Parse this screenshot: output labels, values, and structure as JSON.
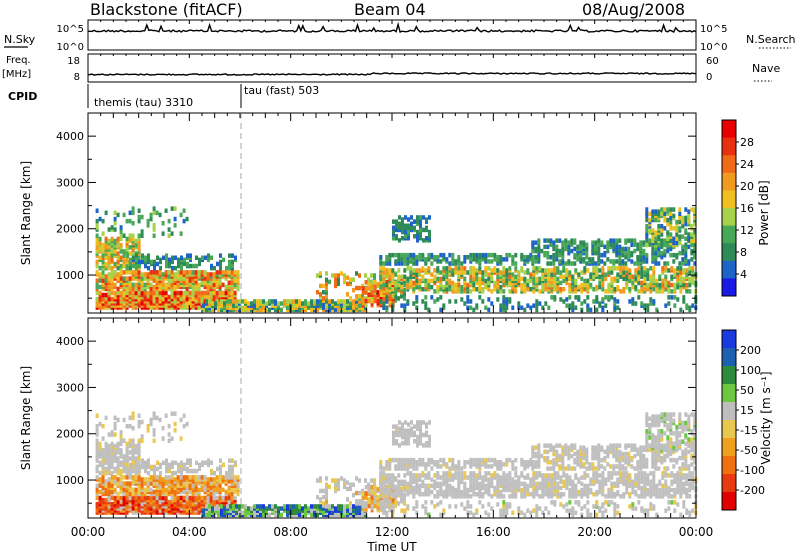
{
  "header": {
    "station": "Blackstone (fitACF)",
    "beam": "Beam 04",
    "date": "08/Aug/2008"
  },
  "strip_panels": {
    "nsky": {
      "label": "N.Sky",
      "ticks": [
        "10^5",
        "10^0"
      ],
      "right_ticks": [
        "10^5",
        "10^0"
      ],
      "right_label": "N.Search"
    },
    "freq": {
      "label_line1": "Freq.",
      "label_line2": "[MHz]",
      "ticks": [
        "18",
        "8"
      ],
      "right_ticks": [
        "60",
        "0"
      ],
      "right_label": "Nave"
    },
    "cpid": {
      "label": "CPID",
      "modes": [
        {
          "name": "themis (tau) 3310",
          "start_hour": 0,
          "end_hour": 6
        },
        {
          "name": "tau (fast) 503",
          "start_hour": 6,
          "end_hour": 24
        }
      ]
    }
  },
  "colors": {
    "power": [
      "#1a1ae6",
      "#1e64c8",
      "#2e8b57",
      "#48a858",
      "#a6d24a",
      "#f0c020",
      "#f09a20",
      "#f06a18",
      "#e83010",
      "#e80000"
    ],
    "velocity": [
      "#1a3ae0",
      "#1e60b0",
      "#2e8a3c",
      "#6cc840",
      "#bebebe",
      "#e8c850",
      "#f0a020",
      "#f07010",
      "#e83a10",
      "#e00000"
    ],
    "ground": "#c0c0c0"
  },
  "chart_data": [
    {
      "type": "heatmap",
      "ylabel": "Slant Range [km]",
      "xlabel": "",
      "colorbar_label": "Power [dB]",
      "colorbar_ticks": [
        "28",
        "24",
        "20",
        "16",
        "12",
        "8",
        "4"
      ],
      "x_tick_labels": [
        "00:00",
        "04:00",
        "08:00",
        "12:00",
        "16:00",
        "20:00",
        "00:00"
      ],
      "y_tick_labels": [
        "1000",
        "2000",
        "3000",
        "4000"
      ],
      "xlim_hours": [
        0,
        24
      ],
      "ylim_km": [
        180,
        4500
      ],
      "zlim": [
        0,
        30
      ]
    },
    {
      "type": "heatmap",
      "ylabel": "Slant Range [km]",
      "xlabel": "Time UT",
      "colorbar_label": "Velocity [m s⁻¹]",
      "colorbar_ticks": [
        "200",
        "100",
        "50",
        "15",
        "-15",
        "-50",
        "-100",
        "-200"
      ],
      "x_tick_labels": [
        "00:00",
        "04:00",
        "08:00",
        "12:00",
        "16:00",
        "20:00",
        "00:00"
      ],
      "y_tick_labels": [
        "1000",
        "2000",
        "3000",
        "4000"
      ],
      "xlim_hours": [
        0,
        24
      ],
      "ylim_km": [
        180,
        4500
      ],
      "zlim": [
        -250,
        250
      ]
    }
  ],
  "scatter_regions": [
    {
      "h0": 0.3,
      "h1": 5.8,
      "r0": 250,
      "r1": 600,
      "p": 0.9,
      "pw": [
        12,
        30
      ],
      "v": [
        -220,
        -80
      ],
      "g": 0.15
    },
    {
      "h0": 0.3,
      "h1": 5.9,
      "r0": 650,
      "r1": 1050,
      "p": 0.8,
      "pw": [
        10,
        26
      ],
      "v": [
        -150,
        -20
      ],
      "g": 0.2
    },
    {
      "h0": 0.3,
      "h1": 2.0,
      "r0": 1100,
      "r1": 1750,
      "p": 0.65,
      "pw": [
        8,
        22
      ],
      "v": [
        -30,
        30
      ],
      "g": 0.7
    },
    {
      "h0": 1.5,
      "h1": 5.8,
      "r0": 1100,
      "r1": 1400,
      "p": 0.35,
      "pw": [
        4,
        12
      ],
      "v": [
        -20,
        20
      ],
      "g": 0.8
    },
    {
      "h0": 0.3,
      "h1": 4.0,
      "r0": 1800,
      "r1": 2400,
      "p": 0.12,
      "pw": [
        4,
        14
      ],
      "v": [
        -40,
        40
      ],
      "g": 0.5
    },
    {
      "h0": 4.5,
      "h1": 11.0,
      "r0": 200,
      "r1": 400,
      "p": 0.85,
      "pw": [
        4,
        20
      ],
      "v": [
        20,
        220
      ],
      "g": 0.1
    },
    {
      "h0": 9.0,
      "h1": 12.5,
      "r0": 400,
      "r1": 1000,
      "p": 0.25,
      "pw": [
        6,
        24
      ],
      "v": [
        -60,
        40
      ],
      "g": 0.5
    },
    {
      "h0": 10.8,
      "h1": 12.0,
      "r0": 300,
      "r1": 800,
      "p": 0.6,
      "pw": [
        14,
        28
      ],
      "v": [
        -120,
        -20
      ],
      "g": 0.4
    },
    {
      "h0": 11.5,
      "h1": 24,
      "r0": 600,
      "r1": 1100,
      "p": 0.55,
      "pw": [
        6,
        22
      ],
      "v": [
        -30,
        30
      ],
      "g": 0.85
    },
    {
      "h0": 11.5,
      "h1": 17.5,
      "r0": 1200,
      "r1": 1400,
      "p": 0.55,
      "pw": [
        4,
        12
      ],
      "v": [
        -20,
        20
      ],
      "g": 0.85
    },
    {
      "h0": 17.5,
      "h1": 24,
      "r0": 1200,
      "r1": 1700,
      "p": 0.45,
      "pw": [
        4,
        12
      ],
      "v": [
        -30,
        40
      ],
      "g": 0.75
    },
    {
      "h0": 12.0,
      "h1": 13.5,
      "r0": 1700,
      "r1": 2200,
      "p": 0.45,
      "pw": [
        4,
        10
      ],
      "v": [
        -20,
        20
      ],
      "g": 0.85
    },
    {
      "h0": 22.0,
      "h1": 24,
      "r0": 1600,
      "r1": 2400,
      "p": 0.5,
      "pw": [
        4,
        18
      ],
      "v": [
        -20,
        80
      ],
      "g": 0.6
    },
    {
      "h0": 11.5,
      "h1": 24,
      "r0": 200,
      "r1": 500,
      "p": 0.2,
      "pw": [
        4,
        10
      ],
      "v": [
        -30,
        60
      ],
      "g": 0.6
    }
  ]
}
